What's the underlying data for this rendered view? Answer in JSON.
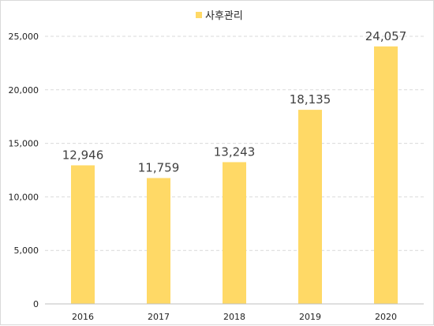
{
  "chart_data": {
    "type": "bar",
    "categories": [
      "2016",
      "2017",
      "2018",
      "2019",
      "2020"
    ],
    "series": [
      {
        "name": "사후관리",
        "values": [
          12946,
          11759,
          13243,
          18135,
          24057
        ]
      }
    ],
    "data_labels": [
      "12,946",
      "11,759",
      "13,243",
      "18,135",
      "24,057"
    ],
    "y_ticks": [
      "0",
      "5,000",
      "10,000",
      "15,000",
      "20,000",
      "25,000"
    ],
    "ylim": [
      0,
      25000
    ],
    "grid": "horizontal dashed",
    "legend_position": "top",
    "colors": {
      "bar": "#FFD966",
      "grid": "#d9d9d9",
      "axis": "#bfbfbf"
    }
  }
}
